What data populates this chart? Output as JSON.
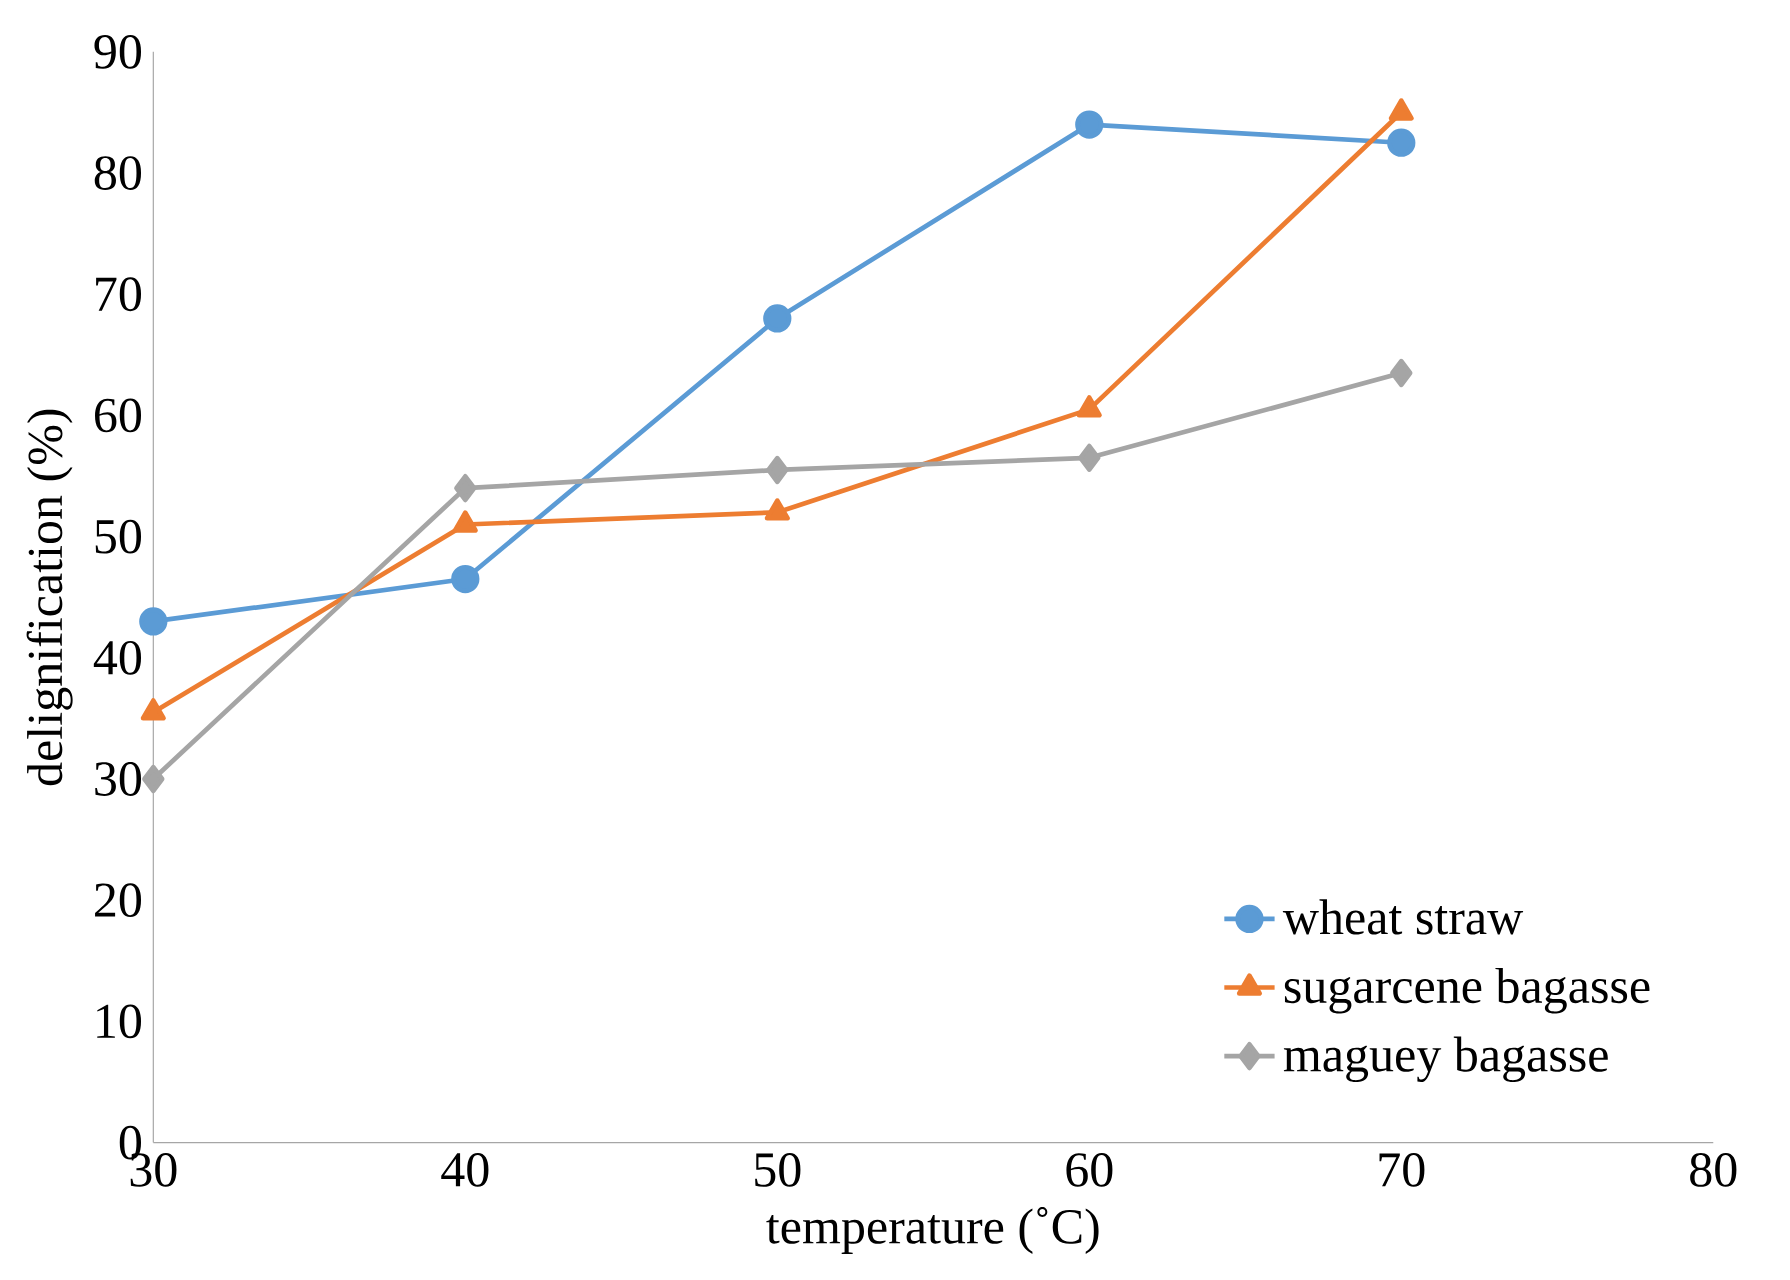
{
  "chart_data": {
    "type": "line",
    "xlabel": "temperature (˚C)",
    "ylabel": "delignification (%)",
    "x": [
      30,
      40,
      50,
      60,
      70
    ],
    "series": [
      {
        "name": "wheat straw",
        "color": "#5b9bd5",
        "marker": "circle",
        "values": [
          43,
          46.5,
          68,
          84,
          82.5
        ]
      },
      {
        "name": "sugarcene bagasse",
        "color": "#ed7d31",
        "marker": "triangle",
        "values": [
          35.5,
          51,
          52,
          60.5,
          85
        ]
      },
      {
        "name": "maguey bagasse",
        "color": "#a5a5a5",
        "marker": "diamond",
        "values": [
          30,
          54,
          55.5,
          56.5,
          63.5
        ]
      }
    ],
    "xlim": [
      30,
      80
    ],
    "xticks": [
      30,
      40,
      50,
      60,
      70,
      80
    ],
    "ylim": [
      0,
      90
    ],
    "yticks": [
      0,
      10,
      20,
      30,
      40,
      50,
      60,
      70,
      80,
      90
    ],
    "grid": false,
    "legend": "bottom right"
  }
}
